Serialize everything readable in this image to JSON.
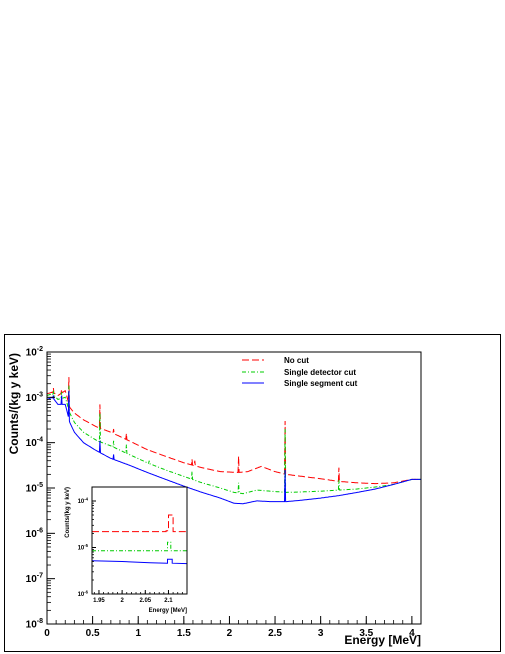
{
  "chart_data": [
    {
      "type": "line",
      "xlabel": "Energy [MeV]",
      "ylabel": "Counts/(kg y keV)",
      "yscale": "log",
      "xlim": [
        0,
        4.1
      ],
      "ylim": [
        1e-08,
        0.01
      ],
      "x_ticks": [
        "0",
        "0.5",
        "1",
        "1.5",
        "2",
        "2.5",
        "3",
        "3.5",
        "4"
      ],
      "y_ticks": [
        {
          "base": "10",
          "exp": "-2"
        },
        {
          "base": "10",
          "exp": "-3"
        },
        {
          "base": "10",
          "exp": "-4"
        },
        {
          "base": "10",
          "exp": "-5"
        },
        {
          "base": "10",
          "exp": "-6"
        },
        {
          "base": "10",
          "exp": "-7"
        },
        {
          "base": "10",
          "exp": "-8"
        }
      ],
      "legend_position": "top-right",
      "series": [
        {
          "name": "No cut",
          "color": "#ff0000",
          "style": "long-dash",
          "points": [
            [
              0.0,
              0.0012
            ],
            [
              0.06,
              0.0013
            ],
            [
              0.12,
              0.0011
            ],
            [
              0.2,
              0.0014
            ],
            [
              0.25,
              0.0006
            ],
            [
              0.3,
              0.00045
            ],
            [
              0.4,
              0.00032
            ],
            [
              0.55,
              0.00022
            ],
            [
              0.7,
              0.00017
            ],
            [
              0.9,
              0.00011
            ],
            [
              1.1,
              7e-05
            ],
            [
              1.3,
              5e-05
            ],
            [
              1.5,
              3.6e-05
            ],
            [
              1.7,
              2.8e-05
            ],
            [
              1.9,
              2.3e-05
            ],
            [
              2.1,
              2.2e-05
            ],
            [
              2.2,
              2.3e-05
            ],
            [
              2.35,
              3e-05
            ],
            [
              2.5,
              2.3e-05
            ],
            [
              2.62,
              2e-05
            ],
            [
              2.8,
              1.8e-05
            ],
            [
              3.0,
              1.6e-05
            ],
            [
              3.2,
              1.4e-05
            ],
            [
              3.4,
              1.3e-05
            ],
            [
              3.6,
              1.25e-05
            ],
            [
              3.8,
              1.3e-05
            ],
            [
              4.0,
              1.55e-05
            ]
          ],
          "peaks": [
            [
              0.07,
              0.0016
            ],
            [
              0.16,
              0.0015
            ],
            [
              0.24,
              0.0028
            ],
            [
              0.51,
              0.00024
            ],
            [
              0.58,
              0.0007
            ],
            [
              0.73,
              0.0002
            ],
            [
              0.87,
              0.00016
            ],
            [
              1.12,
              7e-05
            ],
            [
              1.52,
              3.6e-05
            ],
            [
              1.59,
              4.3e-05
            ],
            [
              1.62,
              4e-05
            ],
            [
              2.1,
              5e-05
            ],
            [
              2.61,
              0.0003
            ],
            [
              3.2,
              2.8e-05
            ]
          ]
        },
        {
          "name": "Single detector cut",
          "color": "#00cc00",
          "style": "dash-dot",
          "points": [
            [
              0.0,
              0.0011
            ],
            [
              0.06,
              0.0012
            ],
            [
              0.12,
              0.0009
            ],
            [
              0.2,
              0.001
            ],
            [
              0.25,
              0.00045
            ],
            [
              0.3,
              0.00028
            ],
            [
              0.4,
              0.00017
            ],
            [
              0.55,
              0.00011
            ],
            [
              0.7,
              8.5e-05
            ],
            [
              0.9,
              5.5e-05
            ],
            [
              1.1,
              3.6e-05
            ],
            [
              1.3,
              2.5e-05
            ],
            [
              1.5,
              1.8e-05
            ],
            [
              1.7,
              1.3e-05
            ],
            [
              1.9,
              1e-05
            ],
            [
              2.05,
              8e-06
            ],
            [
              2.15,
              7.5e-06
            ],
            [
              2.3,
              9e-06
            ],
            [
              2.45,
              8.5e-06
            ],
            [
              2.62,
              8e-06
            ],
            [
              2.8,
              8.2e-06
            ],
            [
              3.0,
              8.5e-06
            ],
            [
              3.2,
              9e-06
            ],
            [
              3.4,
              9.5e-06
            ],
            [
              3.6,
              1.05e-05
            ],
            [
              3.8,
              1.2e-05
            ],
            [
              4.0,
              1.55e-05
            ]
          ],
          "peaks": [
            [
              0.07,
              0.0014
            ],
            [
              0.16,
              0.0013
            ],
            [
              0.24,
              0.0018
            ],
            [
              0.58,
              0.00045
            ],
            [
              0.73,
              0.00011
            ],
            [
              0.87,
              9e-05
            ],
            [
              1.12,
              4e-05
            ],
            [
              1.59,
              2.3e-05
            ],
            [
              2.1,
              1.3e-05
            ],
            [
              2.61,
              0.0002
            ],
            [
              3.2,
              1.5e-05
            ]
          ]
        },
        {
          "name": "Single segment cut",
          "color": "#0000ff",
          "style": "solid",
          "points": [
            [
              0.0,
              0.0009
            ],
            [
              0.06,
              0.001
            ],
            [
              0.12,
              0.0007
            ],
            [
              0.2,
              0.0007
            ],
            [
              0.25,
              0.00028
            ],
            [
              0.3,
              0.00017
            ],
            [
              0.4,
              0.0001
            ],
            [
              0.55,
              6.5e-05
            ],
            [
              0.7,
              4.5e-05
            ],
            [
              0.9,
              3.2e-05
            ],
            [
              1.1,
              2.2e-05
            ],
            [
              1.3,
              1.55e-05
            ],
            [
              1.5,
              1.1e-05
            ],
            [
              1.7,
              8e-06
            ],
            [
              1.9,
              6e-06
            ],
            [
              2.05,
              4.6e-06
            ],
            [
              2.15,
              4.5e-06
            ],
            [
              2.3,
              5.2e-06
            ],
            [
              2.45,
              5e-06
            ],
            [
              2.62,
              5e-06
            ],
            [
              2.8,
              5.4e-06
            ],
            [
              3.0,
              6e-06
            ],
            [
              3.2,
              6.8e-06
            ],
            [
              3.4,
              8e-06
            ],
            [
              3.6,
              9.5e-06
            ],
            [
              3.8,
              1.2e-05
            ],
            [
              4.0,
              1.55e-05
            ]
          ],
          "peaks": [
            [
              0.07,
              0.0011
            ],
            [
              0.16,
              0.0011
            ],
            [
              0.24,
              0.0014
            ],
            [
              0.58,
              0.00011
            ],
            [
              0.73,
              5.5e-05
            ],
            [
              2.61,
              2.5e-05
            ]
          ]
        }
      ]
    },
    {
      "type": "line",
      "inset": true,
      "xlabel": "Energy [MeV]",
      "ylabel": "Counts/(kg y keV)",
      "yscale": "log",
      "xlim": [
        1.935,
        2.14
      ],
      "ylim": [
        1e-06,
        0.0002
      ],
      "x_ticks": [
        "1.95",
        "2",
        "2.05",
        "2.1"
      ],
      "y_ticks": [
        {
          "base": "10",
          "exp": "-4"
        },
        {
          "base": "10",
          "exp": "-5"
        },
        {
          "base": "10",
          "exp": "-6"
        }
      ],
      "series": [
        {
          "name": "No cut",
          "color": "#ff0000",
          "style": "long-dash",
          "points": [
            [
              1.935,
              2.2e-05
            ],
            [
              2.095,
              2.2e-05
            ],
            [
              2.095,
              2.3e-05
            ],
            [
              2.1,
              2.3e-05
            ],
            [
              2.1,
              5e-05
            ],
            [
              2.11,
              5e-05
            ],
            [
              2.11,
              2.2e-05
            ],
            [
              2.14,
              2.2e-05
            ]
          ]
        },
        {
          "name": "Single detector cut",
          "color": "#00cc00",
          "style": "dash-dot",
          "points": [
            [
              1.935,
              8.5e-06
            ],
            [
              2.098,
              8.5e-06
            ],
            [
              2.098,
              1.3e-05
            ],
            [
              2.105,
              1.3e-05
            ],
            [
              2.105,
              8.5e-06
            ],
            [
              2.14,
              8.5e-06
            ]
          ]
        },
        {
          "name": "Single segment cut",
          "color": "#0000ff",
          "style": "solid",
          "points": [
            [
              1.935,
              5.2e-06
            ],
            [
              2.0,
              5e-06
            ],
            [
              2.06,
              4.7e-06
            ],
            [
              2.098,
              4.6e-06
            ],
            [
              2.098,
              5.6e-06
            ],
            [
              2.108,
              5.6e-06
            ],
            [
              2.108,
              4.6e-06
            ],
            [
              2.14,
              4.5e-06
            ]
          ]
        }
      ]
    }
  ]
}
